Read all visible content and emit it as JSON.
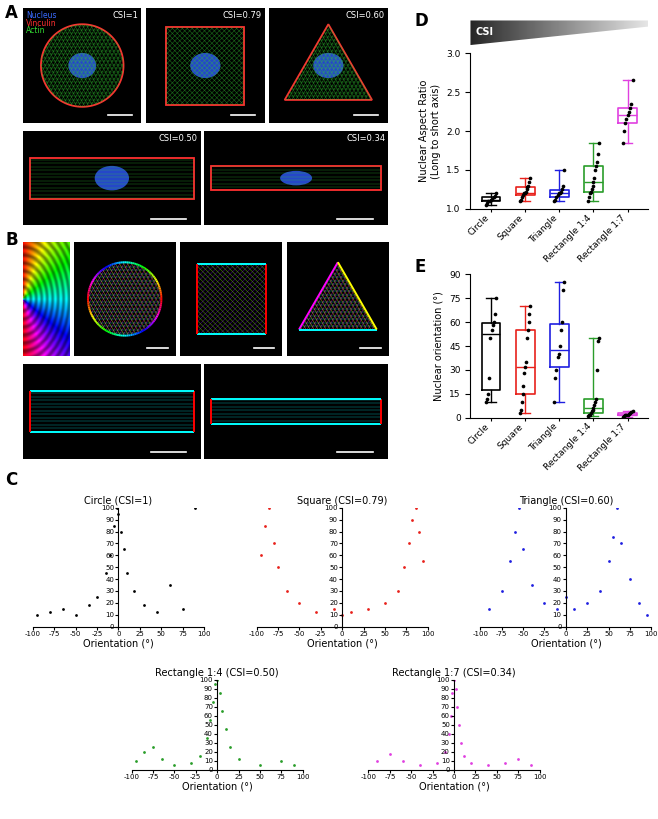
{
  "chart_data": [
    {
      "type": "image",
      "panel": "A",
      "legend": [
        {
          "name": "Nucleus",
          "color": "#3a6bff"
        },
        {
          "name": "Vinculin",
          "color": "#ff3030"
        },
        {
          "name": "Actin",
          "color": "#33dd33"
        }
      ],
      "labels": [
        "CSI=1",
        "CSI=0.79",
        "CSI=0.60",
        "CSI=0.50",
        "CSI=0.34"
      ]
    },
    {
      "type": "image",
      "panel": "B"
    },
    {
      "type": "scatter",
      "panel": "C",
      "title": "Circle (CSI=1)",
      "xlabel": "Orientation (°)",
      "color": "#000000",
      "x": [
        -95,
        -80,
        -65,
        -50,
        -35,
        -25,
        -15,
        -10,
        -5,
        -2,
        0,
        3,
        6,
        10,
        18,
        30,
        45,
        60,
        75,
        90
      ],
      "y": [
        10,
        12,
        15,
        10,
        18,
        25,
        45,
        60,
        85,
        100,
        95,
        80,
        65,
        45,
        30,
        18,
        12,
        35,
        15,
        100
      ],
      "xlim": [
        -100,
        100
      ],
      "ylim": [
        0,
        100
      ],
      "xticks": [
        -100,
        -75,
        -50,
        -25,
        0,
        25,
        50,
        75,
        100
      ],
      "yticks": [
        0,
        10,
        20,
        30,
        40,
        50,
        60,
        70,
        80,
        90,
        100
      ]
    },
    {
      "type": "scatter",
      "title": "Square (CSI=0.79)",
      "xlabel": "Orientation (°)",
      "color": "#e8211b",
      "x": [
        -95,
        -90,
        -85,
        -80,
        -75,
        -65,
        -50,
        -30,
        -10,
        0,
        10,
        30,
        50,
        65,
        72,
        78,
        82,
        86,
        90,
        95
      ],
      "y": [
        60,
        85,
        100,
        70,
        50,
        30,
        20,
        12,
        15,
        10,
        12,
        15,
        20,
        30,
        50,
        70,
        90,
        100,
        80,
        55
      ],
      "xlim": [
        -100,
        100
      ],
      "ylim": [
        0,
        100
      ],
      "xticks": [
        -100,
        -75,
        -50,
        -25,
        0,
        25,
        50,
        75,
        100
      ],
      "yticks": [
        0,
        10,
        20,
        30,
        40,
        50,
        60,
        70,
        80,
        90,
        100
      ]
    },
    {
      "type": "scatter",
      "title": "Triangle (CSI=0.60)",
      "xlabel": "Orientation (°)",
      "color": "#1f1fe0",
      "x": [
        -90,
        -75,
        -65,
        -60,
        -55,
        -50,
        -40,
        -25,
        -10,
        0,
        10,
        25,
        40,
        50,
        55,
        60,
        65,
        75,
        85,
        95
      ],
      "y": [
        15,
        30,
        55,
        80,
        100,
        65,
        35,
        20,
        15,
        25,
        15,
        20,
        30,
        55,
        75,
        100,
        70,
        40,
        20,
        10
      ],
      "xlim": [
        -100,
        100
      ],
      "ylim": [
        0,
        100
      ],
      "xticks": [
        -100,
        -75,
        -50,
        -25,
        0,
        25,
        50,
        75,
        100
      ],
      "yticks": [
        0,
        10,
        20,
        30,
        40,
        50,
        60,
        70,
        80,
        90,
        100
      ]
    },
    {
      "type": "scatter",
      "title": "Rectangle 1:4 (CSI=0.50)",
      "xlabel": "Orientation (°)",
      "color": "#2a9d2a",
      "x": [
        -95,
        -85,
        -75,
        -65,
        -50,
        -30,
        -20,
        -12,
        -8,
        -5,
        -2,
        0,
        3,
        6,
        10,
        15,
        25,
        50,
        75,
        90
      ],
      "y": [
        10,
        20,
        25,
        12,
        5,
        8,
        15,
        35,
        55,
        75,
        95,
        100,
        85,
        65,
        45,
        25,
        12,
        5,
        10,
        5
      ],
      "xlim": [
        -100,
        100
      ],
      "ylim": [
        0,
        100
      ],
      "xticks": [
        -100,
        -75,
        -50,
        -25,
        0,
        25,
        50,
        75,
        100
      ],
      "yticks": [
        0,
        10,
        20,
        30,
        40,
        50,
        60,
        70,
        80,
        90,
        100
      ]
    },
    {
      "type": "scatter",
      "title": "Rectangle 1:7 (CSI=0.34)",
      "xlabel": "Orientation (°)",
      "color": "#e040e0",
      "x": [
        -90,
        -75,
        -60,
        -40,
        -20,
        -10,
        -6,
        -4,
        -2,
        0,
        2,
        4,
        6,
        8,
        12,
        20,
        40,
        60,
        75,
        90
      ],
      "y": [
        10,
        18,
        10,
        5,
        8,
        20,
        40,
        60,
        85,
        100,
        90,
        70,
        50,
        30,
        15,
        8,
        5,
        8,
        12,
        5
      ],
      "xlim": [
        -100,
        100
      ],
      "ylim": [
        0,
        100
      ],
      "xticks": [
        -100,
        -75,
        -50,
        -25,
        0,
        25,
        50,
        75,
        100
      ],
      "yticks": [
        0,
        10,
        20,
        30,
        40,
        50,
        60,
        70,
        80,
        90,
        100
      ]
    },
    {
      "type": "box",
      "panel": "D",
      "annotation": "CSI",
      "ylabel": "Nuclear Aspect Ratio\n(Long to short axis)",
      "categories": [
        "Circle",
        "Square",
        "Triangle",
        "Rectangle 1:4",
        "Rectangle 1:7"
      ],
      "colors": [
        "#000000",
        "#e8211b",
        "#1f1fe0",
        "#2a9d2a",
        "#e040e0"
      ],
      "values": [
        [
          1.05,
          1.08,
          1.1,
          1.1,
          1.12,
          1.13,
          1.15,
          1.17,
          1.2
        ],
        [
          1.1,
          1.12,
          1.15,
          1.18,
          1.2,
          1.2,
          1.22,
          1.25,
          1.28,
          1.3,
          1.35,
          1.4
        ],
        [
          1.1,
          1.12,
          1.15,
          1.18,
          1.2,
          1.2,
          1.22,
          1.25,
          1.3,
          1.5
        ],
        [
          1.1,
          1.15,
          1.2,
          1.22,
          1.25,
          1.3,
          1.35,
          1.4,
          1.5,
          1.55,
          1.6,
          1.7,
          1.85
        ],
        [
          1.85,
          2.0,
          2.1,
          2.15,
          2.2,
          2.25,
          2.3,
          2.35,
          2.65
        ]
      ],
      "ylim": [
        1,
        3
      ],
      "yticks": [
        {
          "value": 1,
          "label": "1.0"
        },
        1.5,
        {
          "value": 2,
          "label": "2.0"
        },
        2.5,
        {
          "value": 3,
          "label": "3.0"
        }
      ]
    },
    {
      "type": "box",
      "panel": "E",
      "ylabel": "Nuclear orientation (°)",
      "categories": [
        "Circle",
        "Square",
        "Triangle",
        "Rectangle 1:4",
        "Rectangle 1:7"
      ],
      "colors": [
        "#000000",
        "#e8211b",
        "#1f1fe0",
        "#2a9d2a",
        "#e040e0"
      ],
      "values": [
        [
          10,
          12,
          15,
          25,
          50,
          55,
          58,
          60,
          65,
          75
        ],
        [
          3,
          5,
          10,
          15,
          20,
          28,
          32,
          35,
          50,
          55,
          60,
          65,
          70
        ],
        [
          10,
          25,
          30,
          38,
          40,
          45,
          55,
          60,
          80,
          85
        ],
        [
          1,
          2,
          2,
          3,
          4,
          5,
          6,
          8,
          10,
          12,
          30,
          48,
          50
        ],
        [
          0.5,
          1,
          1.5,
          2,
          2,
          2.5,
          3,
          3.5,
          4
        ]
      ],
      "ylim": [
        0,
        90
      ],
      "yticks": [
        0,
        15,
        30,
        45,
        60,
        75,
        90
      ]
    }
  ]
}
